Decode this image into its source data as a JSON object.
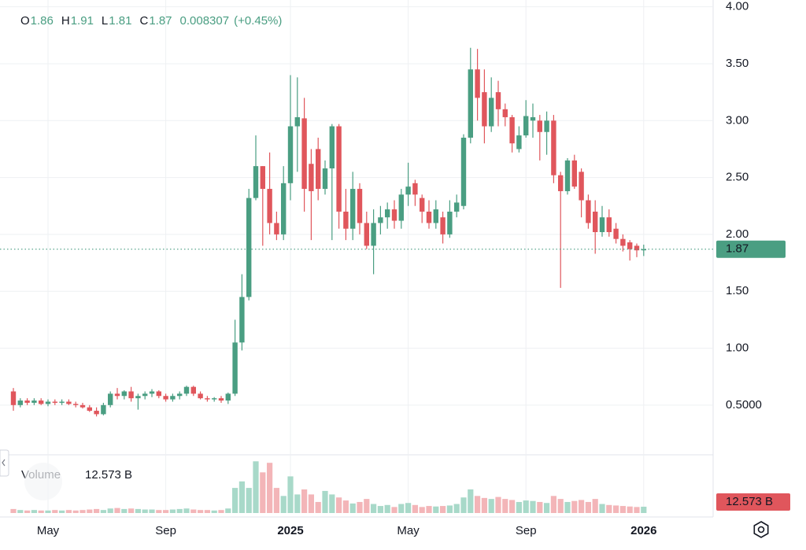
{
  "chart_data": {
    "type": "candlestick",
    "ohlc_labels": [
      "O",
      "H",
      "L",
      "C"
    ],
    "change": 0.008307,
    "change_percent": {
      "value": 0.45,
      "label": "(+0.45%)"
    },
    "volume_title": "Volume",
    "volume_last_label": "12.573 B",
    "up_color": "#4a9e82",
    "down_color": "#e0565c",
    "up_volume_color": "#a8d9c9",
    "down_volume_color": "#f3b5b8",
    "categories": [
      null,
      null,
      null,
      null,
      null,
      "May",
      null,
      null,
      null,
      null,
      null,
      null,
      null,
      null,
      null,
      null,
      null,
      null,
      null,
      null,
      null,
      null,
      "Sep",
      null,
      null,
      null,
      null,
      null,
      null,
      null,
      null,
      null,
      null,
      null,
      null,
      null,
      null,
      null,
      null,
      null,
      "2025",
      null,
      null,
      null,
      null,
      null,
      null,
      null,
      null,
      null,
      null,
      null,
      null,
      null,
      null,
      null,
      null,
      "May",
      null,
      null,
      null,
      null,
      null,
      null,
      null,
      null,
      null,
      null,
      null,
      null,
      null,
      null,
      null,
      null,
      "Sep",
      null,
      null,
      null,
      null,
      null,
      null,
      null,
      null,
      null,
      null,
      null,
      null,
      null,
      null,
      null,
      null,
      "2026"
    ],
    "open": [
      0.62,
      0.5,
      0.54,
      0.52,
      0.54,
      0.51,
      0.53,
      0.52,
      0.53,
      0.51,
      0.5,
      0.48,
      0.45,
      0.42,
      0.5,
      0.6,
      0.58,
      0.62,
      0.56,
      0.58,
      0.6,
      0.62,
      0.58,
      0.55,
      0.58,
      0.6,
      0.66,
      0.6,
      0.56,
      0.55,
      0.56,
      0.54,
      0.6,
      1.05,
      1.45,
      2.32,
      2.6,
      2.4,
      2.1,
      2.0,
      2.45,
      2.95,
      3.02,
      2.62,
      2.75,
      2.4,
      2.58,
      2.95,
      2.2,
      2.05,
      2.4,
      2.1,
      1.9,
      2.1,
      2.15,
      2.22,
      2.12,
      2.35,
      2.45,
      2.32,
      2.2,
      2.1,
      2.15,
      2.0,
      2.2,
      2.25,
      2.85,
      3.45,
      3.25,
      2.95,
      3.25,
      3.1,
      3.03,
      2.75,
      2.87,
      3.0,
      3.0,
      2.9,
      3.0,
      2.52,
      2.38,
      2.65,
      2.55,
      2.3,
      2.2,
      2.02,
      2.15,
      2.05,
      1.96,
      1.93,
      1.9,
      1.86
    ],
    "high": [
      0.65,
      0.56,
      0.56,
      0.56,
      0.56,
      0.55,
      0.55,
      0.55,
      0.55,
      0.53,
      0.52,
      0.5,
      0.48,
      0.52,
      0.62,
      0.65,
      0.63,
      0.66,
      0.6,
      0.62,
      0.64,
      0.63,
      0.6,
      0.6,
      0.62,
      0.67,
      0.67,
      0.62,
      0.58,
      0.57,
      0.58,
      0.61,
      1.25,
      1.65,
      2.4,
      2.87,
      2.6,
      2.72,
      2.2,
      2.6,
      3.4,
      3.38,
      3.2,
      2.75,
      2.85,
      2.65,
      2.97,
      2.97,
      2.4,
      2.55,
      2.45,
      2.2,
      2.22,
      2.25,
      2.28,
      2.3,
      2.4,
      2.63,
      2.48,
      2.35,
      2.3,
      2.3,
      2.2,
      2.3,
      2.35,
      2.88,
      3.64,
      3.63,
      3.45,
      3.38,
      3.35,
      3.15,
      3.05,
      2.95,
      3.18,
      3.15,
      3.05,
      3.08,
      3.05,
      2.55,
      2.67,
      2.7,
      2.58,
      2.35,
      2.3,
      2.25,
      2.22,
      2.1,
      2.0,
      1.95,
      1.92,
      1.91
    ],
    "low": [
      0.45,
      0.48,
      0.5,
      0.5,
      0.5,
      0.49,
      0.5,
      0.5,
      0.5,
      0.48,
      0.47,
      0.44,
      0.4,
      0.41,
      0.48,
      0.55,
      0.55,
      0.53,
      0.46,
      0.55,
      0.57,
      0.56,
      0.53,
      0.53,
      0.55,
      0.58,
      0.58,
      0.55,
      0.53,
      0.53,
      0.52,
      0.51,
      0.58,
      0.98,
      1.42,
      2.3,
      1.9,
      2.0,
      1.95,
      1.95,
      2.3,
      2.55,
      2.2,
      1.95,
      2.3,
      2.35,
      1.95,
      2.05,
      1.95,
      1.95,
      2.0,
      1.87,
      1.65,
      2.0,
      2.05,
      2.05,
      2.05,
      2.25,
      2.25,
      2.1,
      2.05,
      2.05,
      1.92,
      1.97,
      2.15,
      2.22,
      2.8,
      3.0,
      2.8,
      2.9,
      2.95,
      2.95,
      2.72,
      2.72,
      2.85,
      2.85,
      2.65,
      2.7,
      2.45,
      1.53,
      2.35,
      2.4,
      2.15,
      2.05,
      1.83,
      1.98,
      1.98,
      1.92,
      1.85,
      1.77,
      1.8,
      1.81
    ],
    "close": [
      0.5,
      0.54,
      0.52,
      0.54,
      0.51,
      0.53,
      0.52,
      0.53,
      0.51,
      0.5,
      0.48,
      0.45,
      0.42,
      0.5,
      0.6,
      0.58,
      0.62,
      0.56,
      0.58,
      0.6,
      0.62,
      0.58,
      0.55,
      0.58,
      0.6,
      0.66,
      0.6,
      0.56,
      0.55,
      0.56,
      0.54,
      0.6,
      1.05,
      1.45,
      2.32,
      2.6,
      2.4,
      2.1,
      2.0,
      2.45,
      2.95,
      3.03,
      2.4,
      2.38,
      2.4,
      2.58,
      2.95,
      2.2,
      2.05,
      2.4,
      2.1,
      1.9,
      2.1,
      2.15,
      2.22,
      2.12,
      2.35,
      2.42,
      2.35,
      2.2,
      2.1,
      2.22,
      2.0,
      2.2,
      2.28,
      2.85,
      3.45,
      3.2,
      2.95,
      3.2,
      3.1,
      3.03,
      2.8,
      2.87,
      3.04,
      3.03,
      2.9,
      3.0,
      2.52,
      2.38,
      2.65,
      2.42,
      2.3,
      2.1,
      2.02,
      2.15,
      2.02,
      1.96,
      1.9,
      1.87,
      1.86,
      1.87
    ],
    "volume": [
      8,
      6,
      5,
      6,
      5,
      5,
      6,
      5,
      6,
      5,
      6,
      7,
      8,
      6,
      9,
      10,
      8,
      9,
      8,
      7,
      7,
      6,
      6,
      7,
      8,
      9,
      7,
      6,
      6,
      5,
      6,
      9,
      50,
      63,
      50,
      103,
      81,
      100,
      50,
      34,
      73,
      37,
      47,
      37,
      22,
      44,
      37,
      31,
      25,
      19,
      22,
      28,
      18,
      14,
      16,
      12,
      18,
      20,
      16,
      12,
      14,
      13,
      14,
      15,
      18,
      31,
      47,
      34,
      30,
      28,
      32,
      28,
      26,
      22,
      25,
      24,
      22,
      20,
      34,
      28,
      22,
      24,
      26,
      22,
      28,
      18,
      16,
      15,
      14,
      13,
      12,
      12.573
    ],
    "ylim": [
      0.07,
      4.06
    ],
    "yticks": [
      {
        "value": 4,
        "label": "4.00"
      },
      {
        "value": 3.5,
        "label": "3.50"
      },
      {
        "value": 3,
        "label": "3.00"
      },
      {
        "value": 2.5,
        "label": "2.50"
      },
      {
        "value": 2,
        "label": "2.00"
      },
      {
        "value": 1.5,
        "label": "1.50"
      },
      {
        "value": 1,
        "label": "1.00"
      },
      {
        "value": 0.5,
        "label": "0.5000"
      }
    ],
    "volume_ylim": [
      0,
      105
    ],
    "grid": true
  }
}
